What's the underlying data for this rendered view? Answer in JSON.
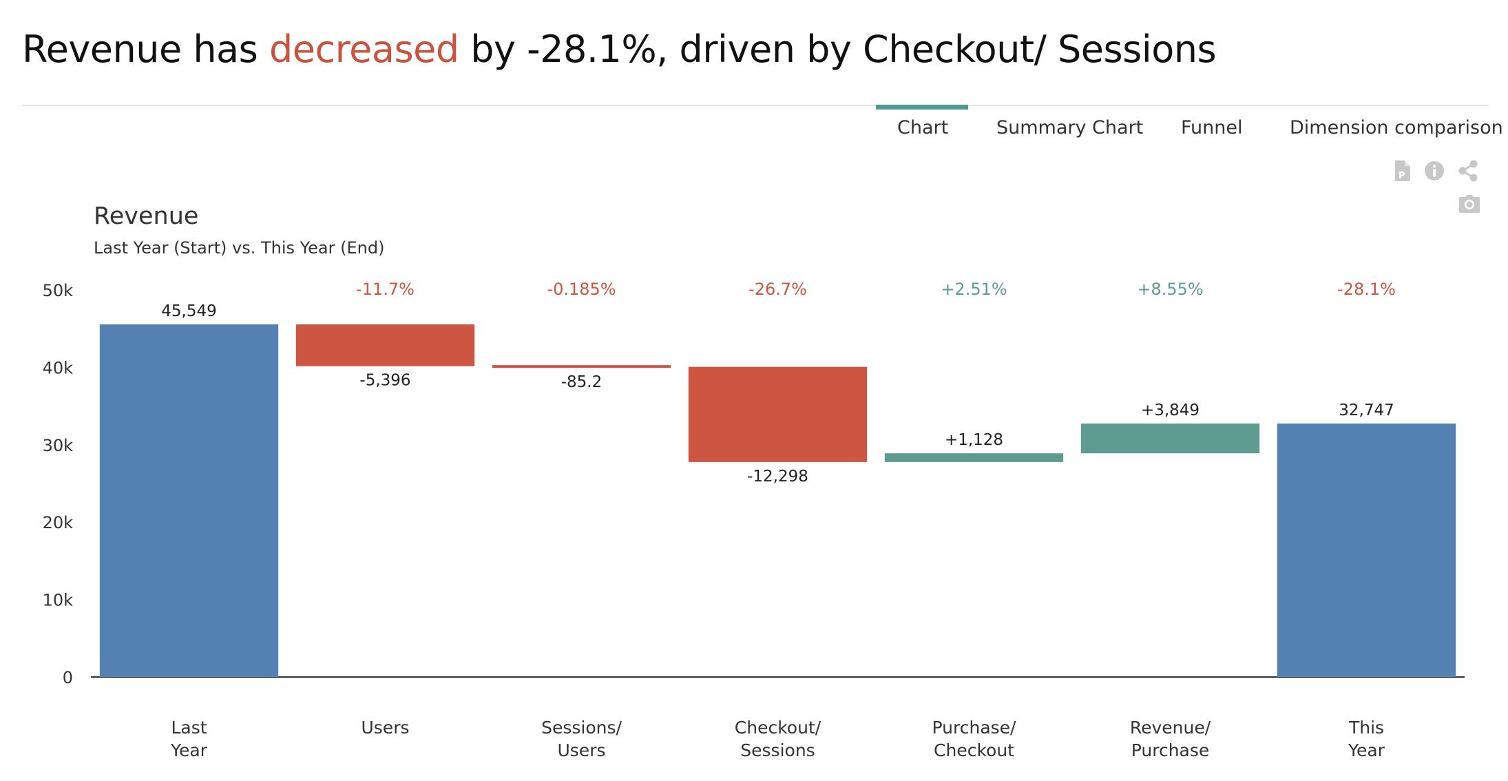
{
  "headline": {
    "prefix": "Revenue has ",
    "highlight": "decreased",
    "suffix": " by -28.1%, driven by Checkout/ Sessions",
    "highlight_color": "#c9533f"
  },
  "tabs": [
    {
      "label": "Chart",
      "active": true
    },
    {
      "label": "Summary Chart",
      "active": false
    },
    {
      "label": "Funnel",
      "active": false
    },
    {
      "label": "Dimension comparison",
      "active": false
    }
  ],
  "toolbar": {
    "icons": [
      "pdf-icon",
      "info-icon",
      "share-icon",
      "camera-icon"
    ]
  },
  "colors": {
    "total": "#5381b1",
    "decrease": "#cc5641",
    "increase": "#5e9c92",
    "tab_accent": "#4f9a8f",
    "icon_gray": "#c8c8c8"
  },
  "chart_data": {
    "type": "waterfall",
    "title": "Revenue",
    "subtitle": "Last Year (Start) vs. This Year (End)",
    "ylim": [
      0,
      50000
    ],
    "yticks": [
      {
        "value": 0,
        "label": "0"
      },
      {
        "value": 10000,
        "label": "10k"
      },
      {
        "value": 20000,
        "label": "20k"
      },
      {
        "value": 30000,
        "label": "30k"
      },
      {
        "value": 40000,
        "label": "40k"
      },
      {
        "value": 50000,
        "label": "50k"
      }
    ],
    "grid": false,
    "bars": [
      {
        "category": [
          "Last",
          "Year"
        ],
        "kind": "total",
        "value": 45549,
        "label": "45,549",
        "pct": ""
      },
      {
        "category": [
          "Users"
        ],
        "kind": "decrease",
        "value": -5396,
        "label": "-5,396",
        "pct": "-11.7%"
      },
      {
        "category": [
          "Sessions/",
          "Users"
        ],
        "kind": "decrease",
        "value": -85.2,
        "label": "-85.2",
        "pct": "-0.185%"
      },
      {
        "category": [
          "Checkout/",
          "Sessions"
        ],
        "kind": "decrease",
        "value": -12298,
        "label": "-12,298",
        "pct": "-26.7%"
      },
      {
        "category": [
          "Purchase/",
          "Checkout"
        ],
        "kind": "increase",
        "value": 1128,
        "label": "+1,128",
        "pct": "+2.51%"
      },
      {
        "category": [
          "Revenue/",
          "Purchase"
        ],
        "kind": "increase",
        "value": 3849,
        "label": "+3,849",
        "pct": "+8.55%"
      },
      {
        "category": [
          "This",
          "Year"
        ],
        "kind": "total",
        "value": 32747,
        "label": "32,747",
        "pct": "-28.1%"
      }
    ]
  }
}
